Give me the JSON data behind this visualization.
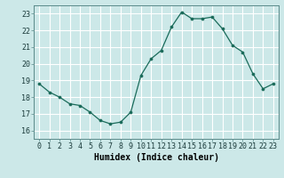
{
  "x": [
    0,
    1,
    2,
    3,
    4,
    5,
    6,
    7,
    8,
    9,
    10,
    11,
    12,
    13,
    14,
    15,
    16,
    17,
    18,
    19,
    20,
    21,
    22,
    23
  ],
  "y": [
    18.8,
    18.3,
    18.0,
    17.6,
    17.5,
    17.1,
    16.6,
    16.4,
    16.5,
    17.1,
    19.3,
    20.3,
    20.8,
    22.2,
    23.1,
    22.7,
    22.7,
    22.8,
    22.1,
    21.1,
    20.7,
    19.4,
    18.5,
    18.8
  ],
  "xlabel": "Humidex (Indice chaleur)",
  "xlim": [
    -0.5,
    23.5
  ],
  "ylim": [
    15.5,
    23.5
  ],
  "yticks": [
    16,
    17,
    18,
    19,
    20,
    21,
    22,
    23
  ],
  "xticks": [
    0,
    1,
    2,
    3,
    4,
    5,
    6,
    7,
    8,
    9,
    10,
    11,
    12,
    13,
    14,
    15,
    16,
    17,
    18,
    19,
    20,
    21,
    22,
    23
  ],
  "line_color": "#1a6b5a",
  "marker_color": "#1a6b5a",
  "bg_color": "#cce8e8",
  "grid_color": "#ffffff",
  "spine_color": "#5a8a8a",
  "tick_label_fontsize": 6,
  "xlabel_fontsize": 7
}
